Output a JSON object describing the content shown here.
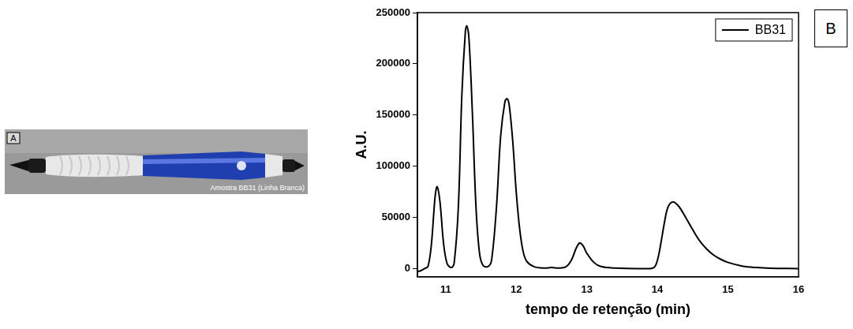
{
  "photo": {
    "panel": "A",
    "caption": "Amostra BB31 (Linha Branca)"
  },
  "chart_data": {
    "type": "line",
    "panel": "B",
    "x_label": "tempo de retenção (min)",
    "y_label": "A.U.",
    "x": [
      10.6,
      10.65,
      10.7,
      10.75,
      10.8,
      10.85,
      10.88,
      10.92,
      10.97,
      11.02,
      11.08,
      11.12,
      11.18,
      11.23,
      11.28,
      11.3,
      11.33,
      11.38,
      11.43,
      11.48,
      11.53,
      11.6,
      11.65,
      11.72,
      11.78,
      11.84,
      11.87,
      11.9,
      11.95,
      12.0,
      12.05,
      12.1,
      12.15,
      12.25,
      12.4,
      12.5,
      12.6,
      12.7,
      12.78,
      12.85,
      12.9,
      12.95,
      13.0,
      13.1,
      13.2,
      13.4,
      13.8,
      13.95,
      14.0,
      14.05,
      14.1,
      14.15,
      14.22,
      14.3,
      14.4,
      14.5,
      14.6,
      14.7,
      14.8,
      14.9,
      15.0,
      15.2,
      15.4,
      15.6,
      16.0
    ],
    "series": [
      {
        "name": "BB31",
        "color": "#000000",
        "values": [
          -3000,
          -2000,
          0,
          2000,
          25000,
          70000,
          80000,
          65000,
          25000,
          5000,
          1000,
          5000,
          60000,
          170000,
          232000,
          237000,
          225000,
          150000,
          60000,
          15000,
          3000,
          2000,
          8000,
          60000,
          130000,
          163000,
          166000,
          160000,
          125000,
          75000,
          38000,
          16000,
          7000,
          2000,
          500,
          1000,
          500,
          1500,
          8000,
          20000,
          25000,
          22000,
          15000,
          6000,
          2000,
          500,
          0,
          1000,
          8000,
          25000,
          45000,
          60000,
          65000,
          61000,
          50000,
          38000,
          27000,
          19000,
          13000,
          9000,
          6000,
          2500,
          1000,
          300,
          0
        ]
      }
    ],
    "xlim": [
      10.6,
      16
    ],
    "xticks": [
      11,
      12,
      13,
      14,
      15,
      16
    ],
    "ylim": [
      -8000,
      250000
    ],
    "yticks": [
      0,
      50000,
      100000,
      150000,
      200000,
      250000
    ],
    "grid": false,
    "legend": "upper right"
  }
}
